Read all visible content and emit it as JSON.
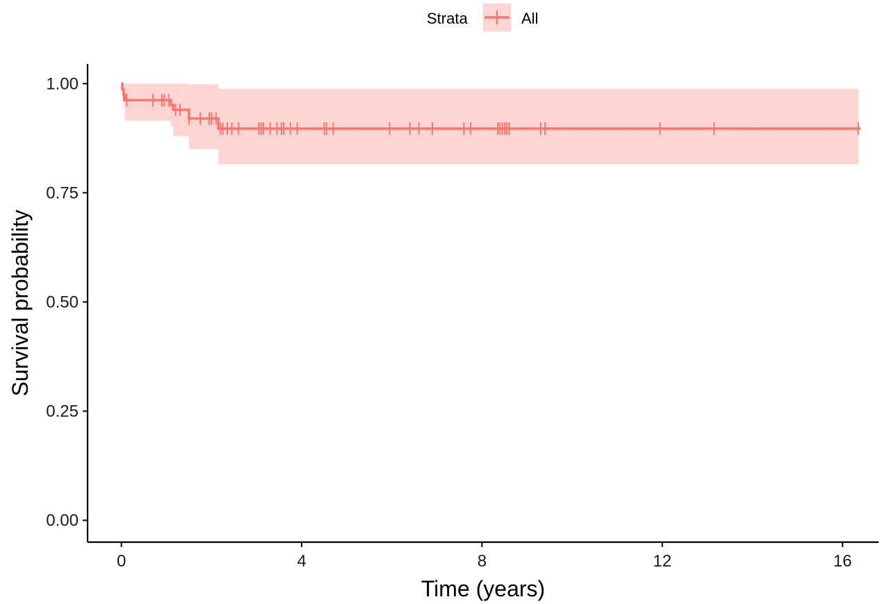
{
  "chart_data": {
    "type": "line",
    "subtype": "kaplan-meier survival curve",
    "xlabel": "Time (years)",
    "ylabel": "Survival probability",
    "xlim": [
      -0.75,
      16.8
    ],
    "ylim": [
      -0.05,
      1.045
    ],
    "x_ticks": [
      0,
      4,
      8,
      12,
      16
    ],
    "x_tick_labels": [
      "0",
      "4",
      "8",
      "12",
      "16"
    ],
    "y_ticks": [
      0.0,
      0.25,
      0.5,
      0.75,
      1.0
    ],
    "y_tick_labels": [
      "0.00",
      "0.25",
      "0.50",
      "0.75",
      "1.00"
    ],
    "grid": false,
    "legend": {
      "title": "Strata",
      "position": "top",
      "entries": [
        "All"
      ]
    },
    "colors": {
      "line": "#F8766D",
      "ribbon": "#F8766D",
      "ribbon_opacity": 0.3
    },
    "series": [
      {
        "name": "All",
        "steps": [
          {
            "x": 0.0,
            "y": 1.0,
            "lower": 1.0,
            "upper": 1.0
          },
          {
            "x": 0.02,
            "y": 0.987,
            "lower": 0.96,
            "upper": 1.0
          },
          {
            "x": 0.05,
            "y": 0.975,
            "lower": 0.945,
            "upper": 1.0
          },
          {
            "x": 0.08,
            "y": 0.962,
            "lower": 0.915,
            "upper": 1.0
          },
          {
            "x": 1.1,
            "y": 0.951,
            "lower": 0.902,
            "upper": 1.0
          },
          {
            "x": 1.15,
            "y": 0.94,
            "lower": 0.88,
            "upper": 1.0
          },
          {
            "x": 1.5,
            "y": 0.92,
            "lower": 0.85,
            "upper": 0.998
          },
          {
            "x": 2.15,
            "y": 0.897,
            "lower": 0.815,
            "upper": 0.988
          },
          {
            "x": 16.35,
            "y": 0.897,
            "lower": 0.815,
            "upper": 0.988
          }
        ],
        "censor_times": [
          0.05,
          0.12,
          0.7,
          0.9,
          0.95,
          1.05,
          1.2,
          1.3,
          1.5,
          1.75,
          1.95,
          2.0,
          2.1,
          2.2,
          2.25,
          2.35,
          2.45,
          2.6,
          3.05,
          3.1,
          3.15,
          3.3,
          3.45,
          3.55,
          3.6,
          3.75,
          3.9,
          4.5,
          4.55,
          4.7,
          5.95,
          6.4,
          6.6,
          6.9,
          7.6,
          7.75,
          8.35,
          8.4,
          8.45,
          8.5,
          8.55,
          8.6,
          9.3,
          9.4,
          11.95,
          13.15,
          16.35
        ],
        "end_x": 16.4
      }
    ]
  }
}
